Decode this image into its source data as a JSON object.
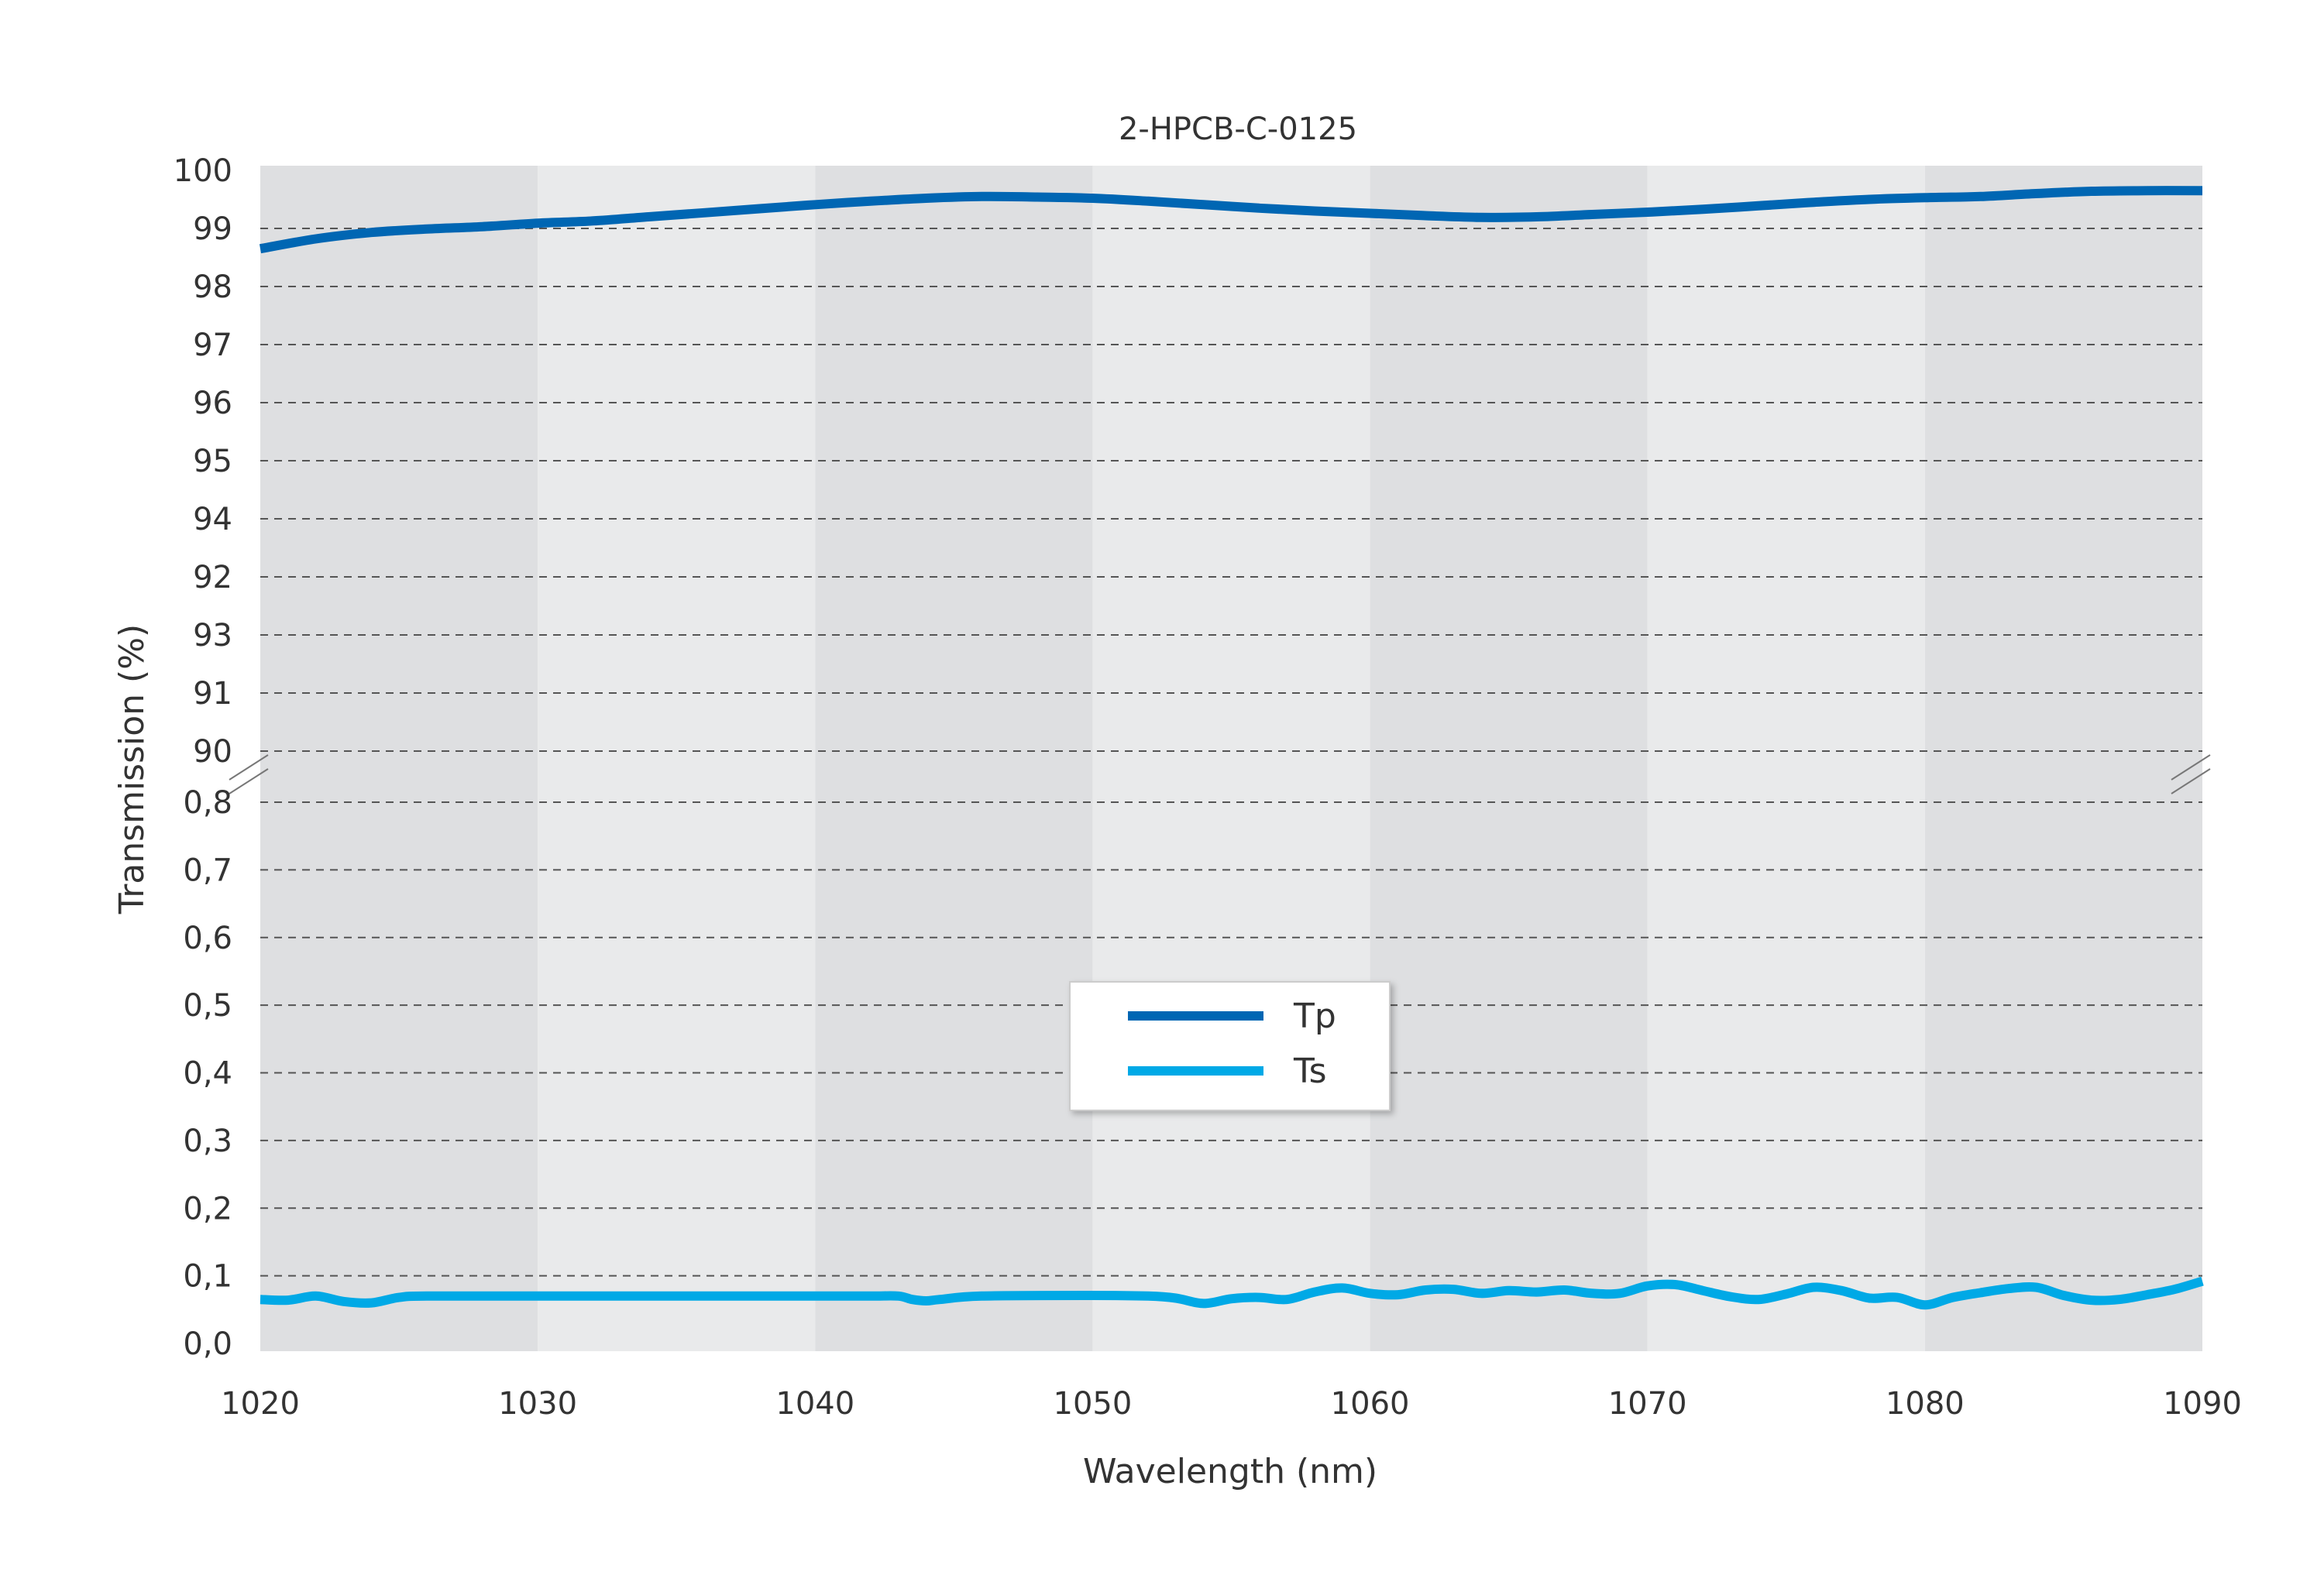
{
  "chart_data": {
    "type": "line",
    "title": "2-HPCB-C-0125",
    "xlabel": "Wavelength (nm)",
    "ylabel": "Transmission (%)",
    "xlim": [
      1020,
      1090
    ],
    "x_ticks": [
      "1020",
      "1030",
      "1040",
      "1050",
      "1060",
      "1070",
      "1080",
      "1090"
    ],
    "y_axis_break": true,
    "upper_y_range": [
      90,
      100
    ],
    "upper_y_tick_labels": [
      "100",
      "99",
      "98",
      "97",
      "96",
      "95",
      "94",
      "92",
      "93",
      "91",
      "90"
    ],
    "lower_y_range": [
      0,
      0.8
    ],
    "lower_y_tick_labels": [
      "0,8",
      "0,7",
      "0,6",
      "0,5",
      "0,4",
      "0,3",
      "0,2",
      "0,1",
      "0,0"
    ],
    "grid": "horizontal dashed",
    "background_bands": "alternating gray every 10 nm",
    "legend_position": "center",
    "colors": {
      "Tp": "#0066b3",
      "Ts": "#00a9e6",
      "band_dark": "#dedfe1",
      "band_light": "#e9eaeb"
    },
    "series": [
      {
        "name": "Tp",
        "x": [
          1020,
          1022,
          1024,
          1026,
          1028,
          1030,
          1032,
          1034,
          1036,
          1038,
          1040,
          1042,
          1044,
          1046,
          1048,
          1050,
          1052,
          1054,
          1056,
          1058,
          1060,
          1062,
          1064,
          1066,
          1068,
          1070,
          1072,
          1074,
          1076,
          1078,
          1080,
          1082,
          1084,
          1086,
          1088,
          1090
        ],
        "y": [
          98.65,
          98.82,
          98.93,
          98.99,
          99.03,
          99.09,
          99.13,
          99.2,
          99.27,
          99.34,
          99.41,
          99.47,
          99.52,
          99.55,
          99.54,
          99.52,
          99.47,
          99.41,
          99.35,
          99.3,
          99.26,
          99.22,
          99.19,
          99.2,
          99.24,
          99.28,
          99.33,
          99.39,
          99.45,
          99.5,
          99.53,
          99.55,
          99.6,
          99.64,
          99.65,
          99.65
        ]
      },
      {
        "name": "Ts",
        "x": [
          1020,
          1021,
          1022,
          1023,
          1024,
          1025,
          1026,
          1030,
          1035,
          1040,
          1042,
          1043,
          1043.5,
          1044,
          1044.5,
          1046,
          1050,
          1052,
          1053,
          1054,
          1055,
          1056,
          1057,
          1058,
          1059,
          1060,
          1061,
          1062,
          1063,
          1064,
          1065,
          1066,
          1067,
          1068,
          1069,
          1070,
          1071,
          1072,
          1073,
          1074,
          1075,
          1076,
          1077,
          1078,
          1079,
          1080,
          1081,
          1082,
          1083,
          1084,
          1085,
          1086,
          1087,
          1088,
          1089,
          1090
        ],
        "y": [
          0.065,
          0.064,
          0.07,
          0.062,
          0.06,
          0.068,
          0.07,
          0.07,
          0.07,
          0.07,
          0.07,
          0.07,
          0.065,
          0.063,
          0.065,
          0.07,
          0.071,
          0.07,
          0.067,
          0.059,
          0.066,
          0.068,
          0.065,
          0.076,
          0.082,
          0.074,
          0.072,
          0.079,
          0.08,
          0.074,
          0.078,
          0.076,
          0.079,
          0.074,
          0.074,
          0.085,
          0.087,
          0.078,
          0.069,
          0.065,
          0.073,
          0.083,
          0.078,
          0.067,
          0.068,
          0.057,
          0.068,
          0.075,
          0.081,
          0.083,
          0.071,
          0.064,
          0.065,
          0.072,
          0.08,
          0.092
        ]
      }
    ]
  }
}
